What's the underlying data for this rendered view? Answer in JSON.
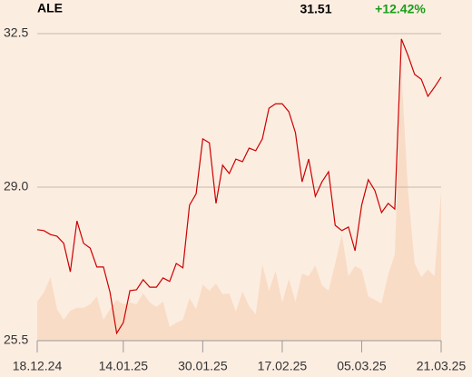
{
  "chart_data": {
    "type": "line",
    "title": "ALE",
    "last_price": "31.51",
    "change": "+12.42%",
    "change_color": "#1a9e1a",
    "background": "#fcede1",
    "grid": true,
    "grid_color": "#c9b9ab",
    "ylim": [
      25.5,
      32.5
    ],
    "yticks": [
      25.5,
      {
        "value": 29.0,
        "label": "29.0"
      },
      32.5
    ],
    "xlim": [
      0,
      61
    ],
    "xticks": [
      {
        "value": 0,
        "label": "18.12.24"
      },
      {
        "value": 13,
        "label": "14.01.25"
      },
      {
        "value": 25,
        "label": "30.01.25"
      },
      {
        "value": 37,
        "label": "17.02.25"
      },
      {
        "value": 49,
        "label": "05.03.25"
      },
      {
        "value": 61,
        "label": "21.03.25"
      }
    ],
    "line": {
      "color": "#cc0000",
      "values": [
        28.03,
        28.01,
        27.92,
        27.88,
        27.72,
        27.07,
        28.23,
        27.72,
        27.61,
        27.18,
        27.18,
        26.6,
        25.67,
        25.91,
        26.64,
        26.66,
        26.89,
        26.72,
        26.72,
        26.93,
        26.85,
        27.26,
        27.16,
        28.59,
        28.85,
        30.1,
        30.01,
        28.63,
        29.5,
        29.31,
        29.64,
        29.58,
        29.89,
        29.83,
        30.1,
        30.8,
        30.9,
        30.9,
        30.72,
        30.24,
        29.12,
        29.64,
        28.79,
        29.12,
        29.35,
        28.13,
        28.01,
        28.09,
        27.55,
        28.59,
        29.17,
        28.92,
        28.42,
        28.63,
        28.5,
        32.38,
        32.0,
        31.57,
        31.46,
        31.07,
        31.28,
        31.51
      ]
    },
    "area": {
      "color": "#f9dcc6",
      "values": [
        26.39,
        26.6,
        26.95,
        26.22,
        25.98,
        26.18,
        26.25,
        26.25,
        26.33,
        26.51,
        25.98,
        26.22,
        26.43,
        26.33,
        26.37,
        26.33,
        26.58,
        26.37,
        26.27,
        26.39,
        25.81,
        25.91,
        25.98,
        26.47,
        26.22,
        26.78,
        26.64,
        26.8,
        26.56,
        26.58,
        26.16,
        26.62,
        26.29,
        26.1,
        27.24,
        26.64,
        27.09,
        26.37,
        26.91,
        26.39,
        27.03,
        26.97,
        27.22,
        26.76,
        26.64,
        27.26,
        27.92,
        26.97,
        27.2,
        27.12,
        26.51,
        26.43,
        26.35,
        27.01,
        27.47,
        31.61,
        28.92,
        27.26,
        26.95,
        27.12,
        26.97,
        28.92
      ]
    }
  }
}
